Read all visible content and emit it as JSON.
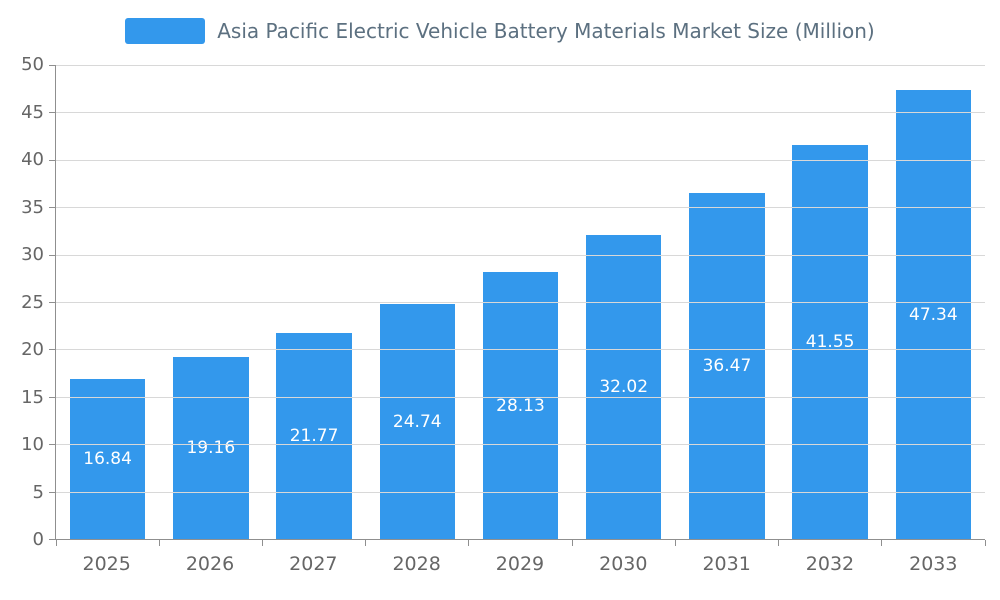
{
  "chart_data": {
    "type": "bar",
    "title": "Asia Pacific Electric Vehicle Battery Materials Market Size (Million)",
    "series_name": "Asia Pacific Electric Vehicle Battery Materials Market Size (Million)",
    "categories": [
      "2025",
      "2026",
      "2027",
      "2028",
      "2029",
      "2030",
      "2031",
      "2032",
      "2033"
    ],
    "values": [
      16.84,
      19.16,
      21.77,
      24.74,
      28.13,
      32.02,
      36.47,
      41.55,
      47.34
    ],
    "value_labels": [
      "16.84",
      "19.16",
      "21.77",
      "24.74",
      "28.13",
      "32.02",
      "36.47",
      "41.55",
      "47.34"
    ],
    "xlabel": "",
    "ylabel": "",
    "ylim": [
      0,
      50
    ],
    "yticks": [
      0,
      5,
      10,
      15,
      20,
      25,
      30,
      35,
      40,
      45,
      50
    ],
    "grid": "horizontal",
    "legend_position": "top-center"
  },
  "colors": {
    "bar": "#3398ec",
    "bar_label": "#ffffff",
    "legend_text": "#5c7080",
    "axis_text": "#666666",
    "grid_line": "#d8d8d8",
    "axis_line": "#8f8f8f",
    "background": "#ffffff"
  }
}
